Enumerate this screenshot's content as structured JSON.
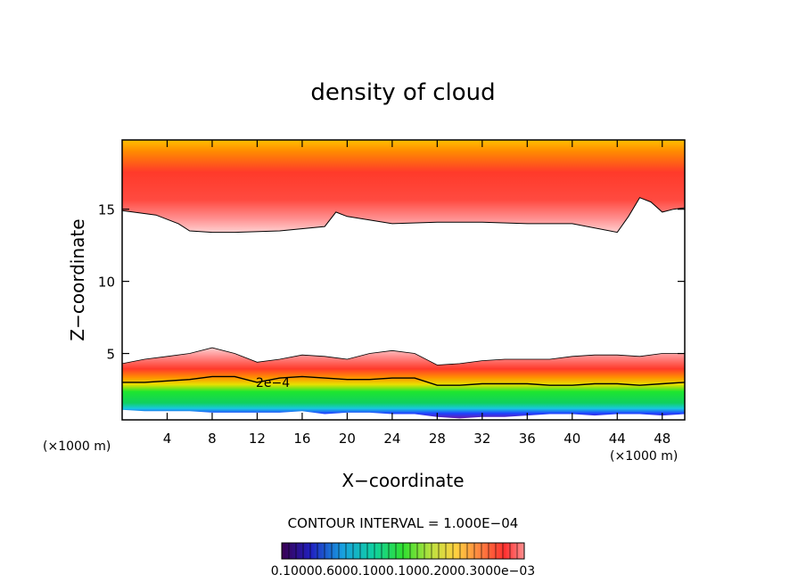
{
  "chart_data": {
    "type": "heatmap",
    "title": "density of cloud",
    "xlabel": "X−coordinate",
    "ylabel": "Z−coordinate",
    "x_unit": "(×1000 m)",
    "y_unit": "(×1000 m)",
    "xlim": [
      0,
      50
    ],
    "ylim": [
      0.4,
      19.8
    ],
    "x_ticks": [
      4,
      8,
      12,
      16,
      20,
      24,
      28,
      32,
      36,
      40,
      44,
      48
    ],
    "y_ticks": [
      5,
      10,
      15
    ],
    "contour_interval_text": "CONTOUR INTERVAL = 1.000E−04",
    "contour_label": "2e−4",
    "colorbar_labels_text": "0.10000.6000.1000.1000.2000.3000e−03",
    "upper_layer": {
      "x": [
        0,
        3,
        5,
        6,
        8,
        10,
        14,
        18,
        19,
        20,
        24,
        28,
        32,
        36,
        40,
        44,
        45,
        46,
        47,
        48,
        49,
        50
      ],
      "bottom": [
        14.9,
        14.6,
        14.0,
        13.5,
        13.4,
        13.4,
        13.5,
        13.8,
        14.8,
        14.5,
        14.0,
        14.1,
        14.1,
        14.0,
        14.0,
        13.4,
        14.5,
        15.8,
        15.5,
        14.8,
        15.0,
        15.1
      ],
      "top": 19.8
    },
    "lower_layer": {
      "x": [
        0,
        2,
        4,
        6,
        8,
        10,
        12,
        14,
        16,
        18,
        20,
        22,
        24,
        26,
        28,
        30,
        32,
        34,
        36,
        38,
        40,
        42,
        44,
        46,
        48,
        50
      ],
      "top": [
        4.3,
        4.6,
        4.8,
        5.0,
        5.4,
        5.0,
        4.4,
        4.6,
        4.9,
        4.8,
        4.6,
        5.0,
        5.2,
        5.0,
        4.2,
        4.3,
        4.5,
        4.6,
        4.6,
        4.6,
        4.8,
        4.9,
        4.9,
        4.8,
        5.0,
        5.0
      ],
      "contour_2e-4": [
        3.0,
        3.0,
        3.1,
        3.2,
        3.4,
        3.4,
        3.0,
        3.3,
        3.4,
        3.3,
        3.2,
        3.2,
        3.3,
        3.3,
        2.8,
        2.8,
        2.9,
        2.9,
        2.9,
        2.8,
        2.8,
        2.9,
        2.9,
        2.8,
        2.9,
        3.0
      ],
      "bottom": [
        1.1,
        1.0,
        1.0,
        1.0,
        0.9,
        0.9,
        0.9,
        0.9,
        1.0,
        0.8,
        0.9,
        0.9,
        0.8,
        0.8,
        0.6,
        0.5,
        0.6,
        0.6,
        0.7,
        0.8,
        0.8,
        0.7,
        0.8,
        0.8,
        0.7,
        0.8
      ]
    },
    "colors": {
      "light_pink": "#ffd0d0",
      "pink": "#ff8f8f",
      "red": "#ff3a2a",
      "orange": "#ff8c00",
      "yellow_orange": "#ffc000",
      "green": "#1ee62e",
      "cyan": "#18c8e0",
      "blue": "#2040ff",
      "purple": "#6a1aa8"
    }
  }
}
